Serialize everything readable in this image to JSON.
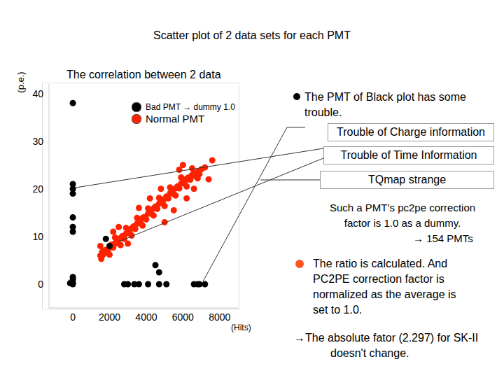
{
  "slide": {
    "title": "Scatter plot of 2 data sets for each PMT",
    "bullet_black": "The PMT of Black plot has some trouble.",
    "boxes": [
      "Trouble of Charge information",
      "Trouble of Time Information",
      "TQmap strange"
    ],
    "dummy_note": [
      "Such a PMT’s pc2pe correction",
      "factor is 1.0 as a dummy.",
      "→ 154 PMTs"
    ],
    "bullet_red": [
      "The ratio is calculated. And",
      "PC2PE correction factor is",
      "normalized as the average is",
      "set to 1.0."
    ],
    "footer": [
      "→The absolute fator (2.297) for SK-II",
      "doesn't change."
    ]
  },
  "chart_data": {
    "type": "scatter",
    "title": "The correlation between 2 data",
    "x_label": "(Hits)",
    "y_label": "(p.e.)",
    "xlim": [
      -1300,
      9000
    ],
    "ylim": [
      -5,
      42
    ],
    "xticks": [
      0,
      2000,
      4000,
      6000,
      8000
    ],
    "yticks": [
      0,
      10,
      20,
      30,
      40
    ],
    "grid": false,
    "legend": "top",
    "series": [
      {
        "name": "Bad PMT → dummy 1.0",
        "color": "#000000",
        "marker": "circle",
        "x": [
          0,
          0,
          0,
          0,
          0,
          0,
          0,
          0,
          0,
          0,
          0,
          -150,
          2000,
          1800,
          2800,
          3000,
          3350,
          3600,
          4100,
          4500,
          4700,
          4700,
          5100,
          6600,
          6800,
          6900,
          7200
        ],
        "values": [
          38,
          21,
          20,
          19,
          14,
          12,
          11,
          1.5,
          1,
          0.3,
          0,
          0.2,
          8,
          9.5,
          0,
          0,
          0,
          0,
          0,
          4,
          0,
          2.5,
          0,
          0,
          0,
          0,
          0
        ]
      },
      {
        "name": "Normal PMT",
        "color": "#ff2200",
        "marker": "circle",
        "x": [
          1500,
          1550,
          1600,
          1650,
          1700,
          1800,
          1900,
          2000,
          2100,
          2200,
          2300,
          2400,
          2500,
          2600,
          2700,
          2800,
          2900,
          3000,
          3100,
          3200,
          3300,
          3400,
          3500,
          3600,
          3700,
          3800,
          3900,
          4000,
          4100,
          4200,
          4300,
          4400,
          4500,
          4600,
          4700,
          4800,
          4900,
          5000,
          5100,
          5200,
          5300,
          5400,
          5500,
          5600,
          5700,
          5800,
          5900,
          6000,
          6100,
          6200,
          6300,
          6400,
          6500,
          6600,
          6700,
          6800,
          6900,
          7000,
          2200,
          3000,
          4200,
          5000,
          5800,
          6200,
          7400,
          7600,
          6000,
          3600,
          1500,
          2500,
          4800,
          5500,
          6600,
          7200,
          2000,
          2600,
          3200,
          3800,
          4400,
          5000,
          5600,
          6200,
          6800,
          2300,
          2900,
          3500,
          4100,
          4700,
          5300,
          5900,
          6500
        ],
        "values": [
          6,
          5.3,
          6.8,
          6.2,
          7,
          7.2,
          6.6,
          7.6,
          8.3,
          7.7,
          8.6,
          9.1,
          8.5,
          9.7,
          10.1,
          9.5,
          10.6,
          11.1,
          10.7,
          11.7,
          12.1,
          11.6,
          12.7,
          13.1,
          12.8,
          13.9,
          14.1,
          13.6,
          14.8,
          15.3,
          14.7,
          15.9,
          16.3,
          15.8,
          16.9,
          17.3,
          16.9,
          17.9,
          18.4,
          18,
          19.1,
          19.4,
          18.9,
          20.1,
          20.5,
          20.1,
          21.1,
          21.6,
          21.1,
          22.1,
          22.4,
          21.9,
          22.9,
          23.3,
          22.6,
          23.6,
          23.1,
          24.1,
          11,
          8.5,
          18,
          13,
          24,
          18,
          22,
          26,
          25,
          16,
          8,
          12,
          20,
          15.5,
          20,
          24.5,
          6.2,
          8.2,
          10.2,
          12.3,
          14.4,
          16.4,
          18.6,
          20.5,
          22.2,
          9.8,
          11.8,
          13.9,
          15.9,
          18.1,
          20.3,
          22.4,
          24.3
        ]
      }
    ]
  }
}
